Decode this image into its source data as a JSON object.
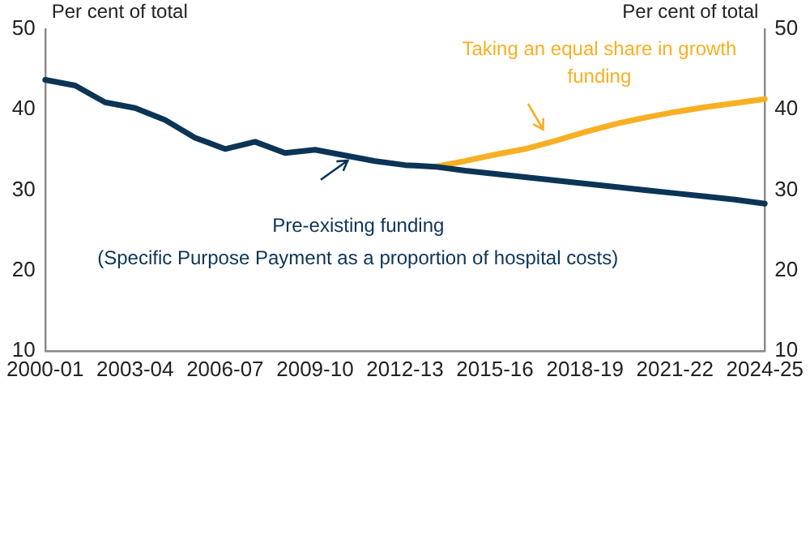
{
  "chart_data": {
    "type": "line",
    "categories": [
      "2000-01",
      null,
      null,
      "2003-04",
      null,
      null,
      "2006-07",
      null,
      null,
      "2009-10",
      null,
      null,
      "2012-13",
      null,
      null,
      "2015-16",
      null,
      null,
      "2018-19",
      null,
      null,
      "2021-22",
      null,
      null,
      "2024-25"
    ],
    "series": [
      {
        "name": "Pre-existing funding",
        "color": "#0c3456",
        "values": [
          43.7,
          43.0,
          40.9,
          40.2,
          38.7,
          36.5,
          35.1,
          36.0,
          34.6,
          35.0,
          34.3,
          33.6,
          33.1,
          32.9,
          32.4,
          32.0,
          31.6,
          31.2,
          30.8,
          30.4,
          30.0,
          29.6,
          29.2,
          28.8,
          28.3
        ]
      },
      {
        "name": "Taking an equal share in growth funding",
        "color": "#f7b024",
        "values": [
          null,
          null,
          null,
          null,
          null,
          null,
          null,
          null,
          null,
          null,
          null,
          null,
          null,
          32.9,
          33.6,
          34.4,
          35.1,
          36.1,
          37.2,
          38.2,
          39.0,
          39.7,
          40.3,
          40.8,
          41.3
        ]
      }
    ],
    "ylabel": "Per cent of total",
    "y2label": "Per cent of total",
    "ylim": [
      10,
      50
    ],
    "yticks": [
      10,
      20,
      30,
      40,
      50
    ],
    "y2lim": [
      10,
      50
    ],
    "y2ticks": [
      10,
      20,
      30,
      40,
      50
    ],
    "annotations": [
      "(Specific Purpose Payment as a proportion of hospital costs)"
    ],
    "grid": false,
    "legend": false,
    "marker": "none",
    "line_style": "solid"
  }
}
